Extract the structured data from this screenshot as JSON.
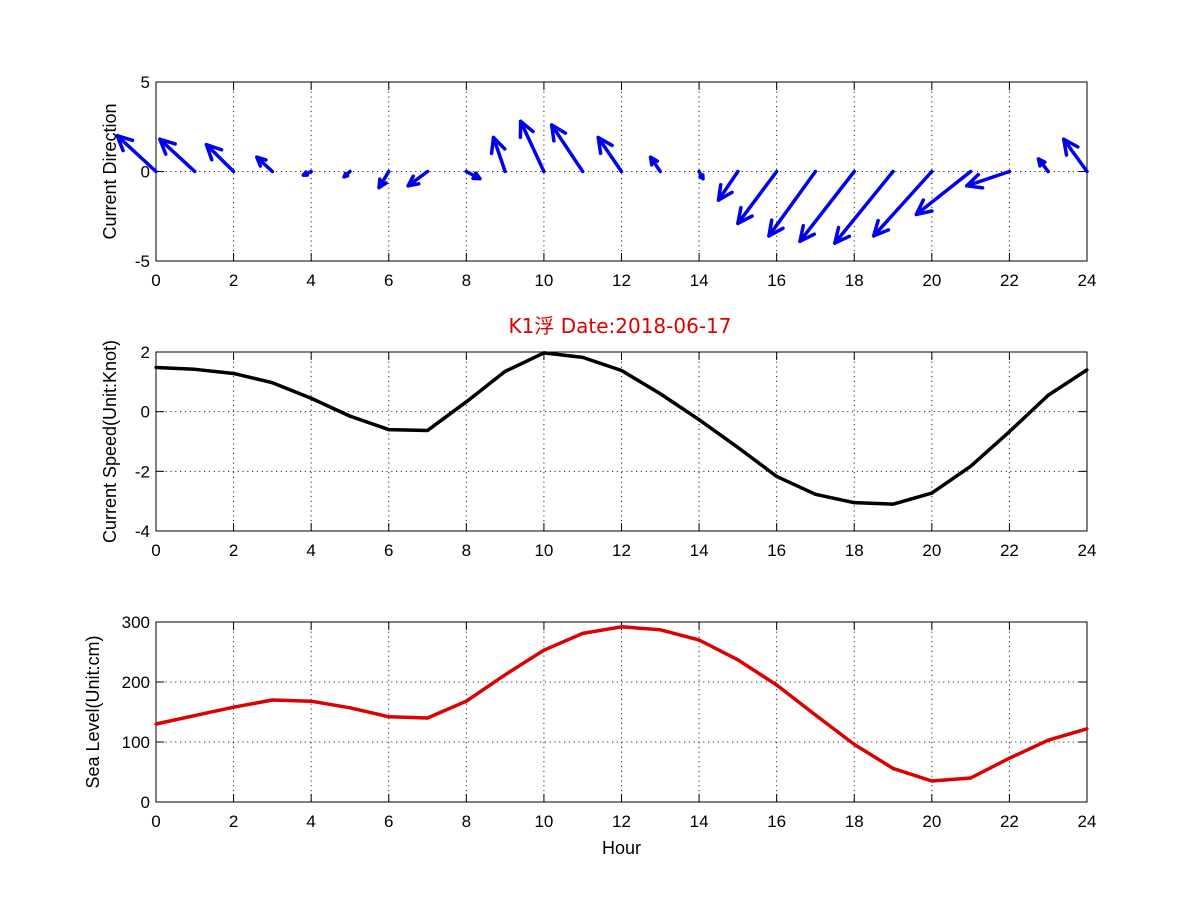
{
  "title": "K1浮    Date:2018-06-17",
  "title_color": "#dd0000",
  "chart_data": [
    {
      "type": "quiver",
      "ylabel": "Current Direction",
      "xlabel": "",
      "xlim": [
        0,
        24
      ],
      "ylim": [
        -5,
        5
      ],
      "xticks": [
        0,
        2,
        4,
        6,
        8,
        10,
        12,
        14,
        16,
        18,
        20,
        22,
        24
      ],
      "yticks": [
        -5,
        0,
        5
      ],
      "grid": true,
      "color": "#0000ee",
      "x": [
        0,
        1,
        2,
        3,
        4,
        5,
        6,
        7,
        8,
        9,
        10,
        11,
        12,
        13,
        14,
        15,
        16,
        17,
        18,
        19,
        20,
        21,
        22,
        23,
        24
      ],
      "u": [
        1.0,
        0.9,
        0.7,
        0.4,
        0.2,
        0.15,
        0.25,
        0.5,
        -0.35,
        0.3,
        0.6,
        0.8,
        0.6,
        0.25,
        -0.1,
        0.5,
        1.0,
        1.2,
        1.4,
        1.5,
        1.5,
        1.4,
        1.1,
        0.25,
        0.6
      ],
      "v": [
        2.0,
        1.8,
        1.5,
        0.8,
        -0.2,
        -0.3,
        -0.9,
        -0.8,
        -0.4,
        1.9,
        2.8,
        2.6,
        1.9,
        0.8,
        -0.4,
        -1.6,
        -2.9,
        -3.6,
        -3.9,
        -4.0,
        -3.6,
        -2.4,
        -0.8,
        0.7,
        1.8
      ]
    },
    {
      "type": "line",
      "ylabel": "Current Speed(Unit:Knot)",
      "xlabel": "",
      "xlim": [
        0,
        24
      ],
      "ylim": [
        -4,
        2
      ],
      "xticks": [
        0,
        2,
        4,
        6,
        8,
        10,
        12,
        14,
        16,
        18,
        20,
        22,
        24
      ],
      "yticks": [
        -4,
        -2,
        0,
        2
      ],
      "grid": true,
      "series": [
        {
          "color": "#000000",
          "x": [
            0,
            1,
            2,
            3,
            4,
            5,
            6,
            7,
            8,
            9,
            10,
            11,
            12,
            13,
            14,
            15,
            16,
            17,
            18,
            19,
            20,
            21,
            22,
            23,
            24
          ],
          "y": [
            1.48,
            1.42,
            1.28,
            0.97,
            0.45,
            -0.15,
            -0.6,
            -0.63,
            0.33,
            1.35,
            1.97,
            1.82,
            1.38,
            0.6,
            -0.27,
            -1.2,
            -2.17,
            -2.77,
            -3.05,
            -3.1,
            -2.73,
            -1.83,
            -0.67,
            0.55,
            1.4
          ]
        }
      ]
    },
    {
      "type": "line",
      "ylabel": "Sea Level(Unit:cm)",
      "xlabel": "Hour",
      "xlim": [
        0,
        24
      ],
      "ylim": [
        0,
        300
      ],
      "xticks": [
        0,
        2,
        4,
        6,
        8,
        10,
        12,
        14,
        16,
        18,
        20,
        22,
        24
      ],
      "yticks": [
        0,
        100,
        200,
        300
      ],
      "grid": true,
      "series": [
        {
          "color": "#dd0000",
          "x": [
            0,
            1,
            2,
            3,
            4,
            5,
            6,
            7,
            8,
            9,
            10,
            11,
            12,
            13,
            14,
            15,
            16,
            17,
            18,
            19,
            20,
            21,
            22,
            23,
            24
          ],
          "y": [
            130,
            144,
            158,
            170,
            168,
            157,
            142,
            140,
            168,
            212,
            253,
            281,
            292,
            287,
            270,
            237,
            195,
            145,
            96,
            56,
            35,
            40,
            73,
            103,
            122
          ]
        }
      ]
    }
  ]
}
